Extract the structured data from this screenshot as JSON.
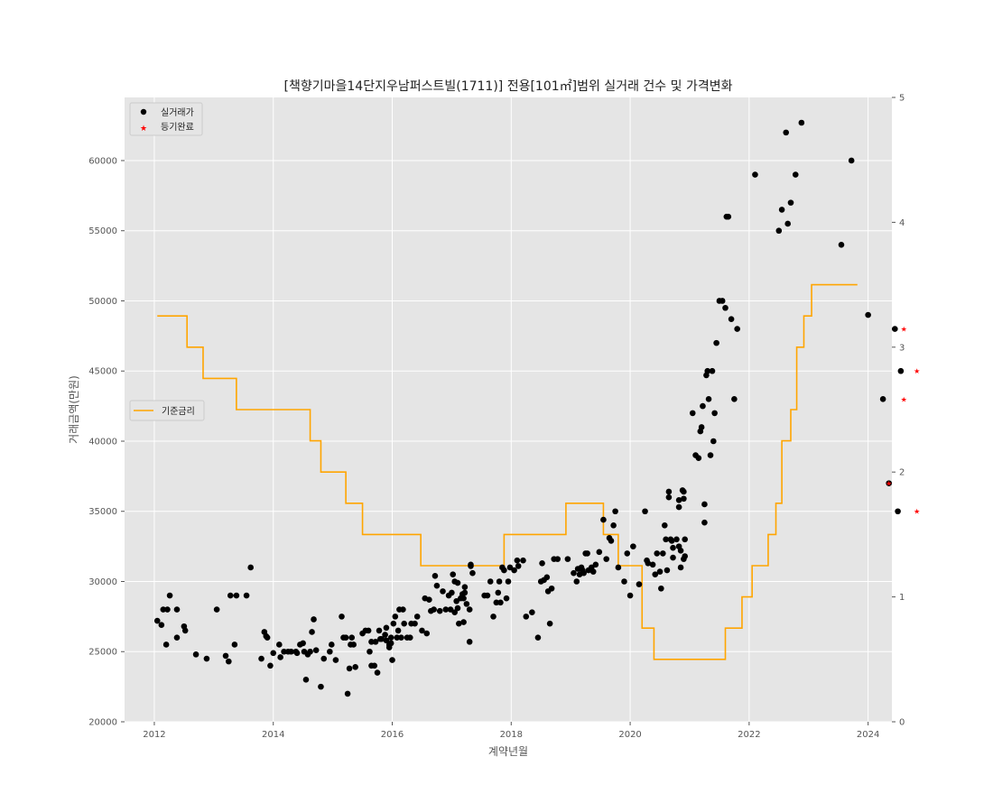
{
  "chart_data": {
    "type": "scatter",
    "title": "[책향기마을14단지우남퍼스트빌(1711)] 전용[101㎡]범위 실거래 건수 및 가격변화",
    "xlabel": "계약년월",
    "ylabel": "거래금액(만원)",
    "xlim": [
      2011.5,
      2024.4
    ],
    "ylim": [
      20000,
      64500
    ],
    "y2lim": [
      0,
      5
    ],
    "x_ticks": [
      2012,
      2014,
      2016,
      2018,
      2020,
      2022,
      2024
    ],
    "y_ticks": [
      20000,
      25000,
      30000,
      35000,
      40000,
      45000,
      50000,
      55000,
      60000
    ],
    "y2_ticks": [
      0,
      1,
      2,
      3,
      4,
      5
    ],
    "grid": true,
    "background": "#e5e5e5",
    "legend_top": {
      "position": "top-left",
      "entries": [
        {
          "label": "실거래가",
          "color": "#000000",
          "marker": "circle"
        },
        {
          "label": "등기완료",
          "color": "#ff0000",
          "marker": "star"
        }
      ]
    },
    "legend_mid": {
      "position": "center-left",
      "entries": [
        {
          "label": "기준금리",
          "color": "#ffa500",
          "marker": "line"
        }
      ]
    },
    "series": [
      {
        "name": "실거래가",
        "color": "#000000",
        "points": [
          [
            2012.05,
            27200
          ],
          [
            2012.12,
            26900
          ],
          [
            2012.15,
            28000
          ],
          [
            2012.2,
            25500
          ],
          [
            2012.22,
            28000
          ],
          [
            2012.26,
            29000
          ],
          [
            2012.38,
            26000
          ],
          [
            2012.38,
            28000
          ],
          [
            2012.5,
            26800
          ],
          [
            2012.52,
            26500
          ],
          [
            2012.7,
            24800
          ],
          [
            2012.88,
            24500
          ],
          [
            2013.05,
            28000
          ],
          [
            2013.2,
            24700
          ],
          [
            2013.25,
            24300
          ],
          [
            2013.28,
            29000
          ],
          [
            2013.35,
            25500
          ],
          [
            2013.38,
            29000
          ],
          [
            2013.55,
            29000
          ],
          [
            2013.62,
            31000
          ],
          [
            2013.8,
            24500
          ],
          [
            2013.85,
            26400
          ],
          [
            2013.88,
            26100
          ],
          [
            2013.9,
            26000
          ],
          [
            2013.95,
            24000
          ],
          [
            2014.0,
            24900
          ],
          [
            2014.1,
            25500
          ],
          [
            2014.12,
            24600
          ],
          [
            2014.18,
            25000
          ],
          [
            2014.25,
            25000
          ],
          [
            2014.3,
            25000
          ],
          [
            2014.38,
            25000
          ],
          [
            2014.4,
            24900
          ],
          [
            2014.45,
            25500
          ],
          [
            2014.5,
            25600
          ],
          [
            2014.52,
            25000
          ],
          [
            2014.55,
            23000
          ],
          [
            2014.58,
            24800
          ],
          [
            2014.62,
            25000
          ],
          [
            2014.65,
            26400
          ],
          [
            2014.68,
            27300
          ],
          [
            2014.72,
            25100
          ],
          [
            2014.8,
            22500
          ],
          [
            2014.85,
            24500
          ],
          [
            2014.95,
            25000
          ],
          [
            2014.98,
            25500
          ],
          [
            2015.05,
            24400
          ],
          [
            2015.15,
            27500
          ],
          [
            2015.18,
            26000
          ],
          [
            2015.22,
            26000
          ],
          [
            2015.25,
            22000
          ],
          [
            2015.28,
            23800
          ],
          [
            2015.3,
            25500
          ],
          [
            2015.32,
            26000
          ],
          [
            2015.35,
            25500
          ],
          [
            2015.38,
            23900
          ],
          [
            2015.5,
            26300
          ],
          [
            2015.55,
            26500
          ],
          [
            2015.6,
            26500
          ],
          [
            2015.62,
            25000
          ],
          [
            2015.65,
            25700
          ],
          [
            2015.65,
            24000
          ],
          [
            2015.7,
            24000
          ],
          [
            2015.72,
            25700
          ],
          [
            2015.75,
            23500
          ],
          [
            2015.78,
            26500
          ],
          [
            2015.8,
            25900
          ],
          [
            2015.82,
            25900
          ],
          [
            2015.88,
            26200
          ],
          [
            2015.9,
            26700
          ],
          [
            2015.9,
            25800
          ],
          [
            2015.95,
            25500
          ],
          [
            2015.95,
            25300
          ],
          [
            2015.98,
            26000
          ],
          [
            2015.98,
            25600
          ],
          [
            2016.0,
            24400
          ],
          [
            2016.02,
            27000
          ],
          [
            2016.05,
            27500
          ],
          [
            2016.08,
            26000
          ],
          [
            2016.1,
            26500
          ],
          [
            2016.12,
            28000
          ],
          [
            2016.15,
            26000
          ],
          [
            2016.18,
            28000
          ],
          [
            2016.2,
            27000
          ],
          [
            2016.25,
            26000
          ],
          [
            2016.3,
            26000
          ],
          [
            2016.32,
            27000
          ],
          [
            2016.38,
            27000
          ],
          [
            2016.42,
            27500
          ],
          [
            2016.5,
            26500
          ],
          [
            2016.55,
            28800
          ],
          [
            2016.58,
            26300
          ],
          [
            2016.62,
            28700
          ],
          [
            2016.65,
            27900
          ],
          [
            2016.7,
            28000
          ],
          [
            2016.72,
            30400
          ],
          [
            2016.75,
            29700
          ],
          [
            2016.8,
            27900
          ],
          [
            2016.85,
            29300
          ],
          [
            2016.9,
            28000
          ],
          [
            2016.95,
            29000
          ],
          [
            2016.98,
            28000
          ],
          [
            2017.0,
            29200
          ],
          [
            2017.02,
            30500
          ],
          [
            2017.05,
            27800
          ],
          [
            2017.05,
            30000
          ],
          [
            2017.08,
            28600
          ],
          [
            2017.1,
            29900
          ],
          [
            2017.1,
            28100
          ],
          [
            2017.12,
            27000
          ],
          [
            2017.15,
            28800
          ],
          [
            2017.18,
            29100
          ],
          [
            2017.2,
            28800
          ],
          [
            2017.2,
            27100
          ],
          [
            2017.22,
            29600
          ],
          [
            2017.22,
            29200
          ],
          [
            2017.25,
            28400
          ],
          [
            2017.3,
            28000
          ],
          [
            2017.3,
            25700
          ],
          [
            2017.32,
            31100
          ],
          [
            2017.32,
            31200
          ],
          [
            2017.35,
            30600
          ],
          [
            2017.55,
            29000
          ],
          [
            2017.6,
            29000
          ],
          [
            2017.65,
            30000
          ],
          [
            2017.7,
            27500
          ],
          [
            2017.75,
            28500
          ],
          [
            2017.78,
            29200
          ],
          [
            2017.8,
            30000
          ],
          [
            2017.82,
            28500
          ],
          [
            2017.85,
            31000
          ],
          [
            2017.88,
            30800
          ],
          [
            2017.92,
            28800
          ],
          [
            2017.95,
            30000
          ],
          [
            2017.98,
            31000
          ],
          [
            2018.05,
            30800
          ],
          [
            2018.1,
            31500
          ],
          [
            2018.12,
            31100
          ],
          [
            2018.2,
            31500
          ],
          [
            2018.25,
            27500
          ],
          [
            2018.35,
            27800
          ],
          [
            2018.45,
            26000
          ],
          [
            2018.5,
            30000
          ],
          [
            2018.52,
            31300
          ],
          [
            2018.55,
            30100
          ],
          [
            2018.6,
            30300
          ],
          [
            2018.62,
            29300
          ],
          [
            2018.65,
            27000
          ],
          [
            2018.68,
            29500
          ],
          [
            2018.72,
            31600
          ],
          [
            2018.78,
            31600
          ],
          [
            2018.95,
            31600
          ],
          [
            2019.05,
            30600
          ],
          [
            2019.1,
            30000
          ],
          [
            2019.12,
            30900
          ],
          [
            2019.15,
            30500
          ],
          [
            2019.18,
            31000
          ],
          [
            2019.2,
            30800
          ],
          [
            2019.22,
            30600
          ],
          [
            2019.25,
            32000
          ],
          [
            2019.28,
            32000
          ],
          [
            2019.3,
            30800
          ],
          [
            2019.35,
            31000
          ],
          [
            2019.38,
            30700
          ],
          [
            2019.42,
            31200
          ],
          [
            2019.48,
            32100
          ],
          [
            2019.55,
            34400
          ],
          [
            2019.6,
            31600
          ],
          [
            2019.65,
            33100
          ],
          [
            2019.68,
            32900
          ],
          [
            2019.72,
            34000
          ],
          [
            2019.75,
            35000
          ],
          [
            2019.8,
            31000
          ],
          [
            2019.9,
            30000
          ],
          [
            2019.95,
            32000
          ],
          [
            2020.0,
            29000
          ],
          [
            2020.05,
            32500
          ],
          [
            2020.15,
            29800
          ],
          [
            2020.25,
            35000
          ],
          [
            2020.28,
            31500
          ],
          [
            2020.3,
            31300
          ],
          [
            2020.38,
            31200
          ],
          [
            2020.42,
            30500
          ],
          [
            2020.45,
            32000
          ],
          [
            2020.5,
            30700
          ],
          [
            2020.52,
            29500
          ],
          [
            2020.55,
            32000
          ],
          [
            2020.58,
            34000
          ],
          [
            2020.6,
            33000
          ],
          [
            2020.62,
            30800
          ],
          [
            2020.65,
            36400
          ],
          [
            2020.65,
            36000
          ],
          [
            2020.68,
            33000
          ],
          [
            2020.7,
            32900
          ],
          [
            2020.72,
            31700
          ],
          [
            2020.72,
            32400
          ],
          [
            2020.78,
            33000
          ],
          [
            2020.82,
            35800
          ],
          [
            2020.82,
            35300
          ],
          [
            2020.82,
            32500
          ],
          [
            2020.85,
            32200
          ],
          [
            2020.85,
            31000
          ],
          [
            2020.88,
            36500
          ],
          [
            2020.9,
            31600
          ],
          [
            2020.9,
            35900
          ],
          [
            2020.9,
            36400
          ],
          [
            2020.92,
            31800
          ],
          [
            2020.92,
            33000
          ],
          [
            2021.05,
            42000
          ],
          [
            2021.1,
            39000
          ],
          [
            2021.15,
            38800
          ],
          [
            2021.18,
            40700
          ],
          [
            2021.2,
            41000
          ],
          [
            2021.22,
            42500
          ],
          [
            2021.25,
            35500
          ],
          [
            2021.25,
            34200
          ],
          [
            2021.28,
            44700
          ],
          [
            2021.3,
            45000
          ],
          [
            2021.32,
            43000
          ],
          [
            2021.35,
            39000
          ],
          [
            2021.38,
            45000
          ],
          [
            2021.4,
            40000
          ],
          [
            2021.42,
            42000
          ],
          [
            2021.45,
            47000
          ],
          [
            2021.5,
            50000
          ],
          [
            2021.55,
            50000
          ],
          [
            2021.6,
            49500
          ],
          [
            2021.62,
            56000
          ],
          [
            2021.65,
            56000
          ],
          [
            2021.7,
            48700
          ],
          [
            2021.75,
            43000
          ],
          [
            2021.8,
            48000
          ],
          [
            2022.1,
            59000
          ],
          [
            2022.5,
            55000
          ],
          [
            2022.55,
            56500
          ],
          [
            2022.62,
            62000
          ],
          [
            2022.65,
            55500
          ],
          [
            2022.7,
            57000
          ],
          [
            2022.78,
            59000
          ],
          [
            2022.88,
            62700
          ],
          [
            2023.55,
            54000
          ],
          [
            2023.72,
            60000
          ],
          [
            2024.0,
            49000
          ],
          [
            2024.25,
            43000
          ],
          [
            2024.35,
            37000
          ],
          [
            2024.45,
            48000
          ],
          [
            2024.5,
            35000
          ],
          [
            2024.55,
            45000
          ]
        ]
      },
      {
        "name": "등기완료",
        "color": "#ff0000",
        "points": [
          [
            2024.35,
            37000
          ],
          [
            2024.6,
            48000
          ],
          [
            2024.6,
            43000
          ],
          [
            2024.82,
            45000
          ],
          [
            2024.82,
            35000
          ]
        ]
      },
      {
        "name": "기준금리",
        "color": "#ffa500",
        "axis": "right",
        "steps": [
          [
            2012.05,
            3.25
          ],
          [
            2012.55,
            3.0
          ],
          [
            2012.82,
            2.75
          ],
          [
            2013.38,
            2.5
          ],
          [
            2014.62,
            2.25
          ],
          [
            2014.8,
            2.0
          ],
          [
            2015.22,
            1.75
          ],
          [
            2015.5,
            1.5
          ],
          [
            2016.48,
            1.25
          ],
          [
            2017.88,
            1.5
          ],
          [
            2018.92,
            1.75
          ],
          [
            2019.55,
            1.5
          ],
          [
            2019.8,
            1.25
          ],
          [
            2020.2,
            0.75
          ],
          [
            2020.4,
            0.5
          ],
          [
            2021.6,
            0.75
          ],
          [
            2021.88,
            1.0
          ],
          [
            2022.05,
            1.25
          ],
          [
            2022.32,
            1.5
          ],
          [
            2022.45,
            1.75
          ],
          [
            2022.55,
            2.25
          ],
          [
            2022.7,
            2.5
          ],
          [
            2022.8,
            3.0
          ],
          [
            2022.92,
            3.25
          ],
          [
            2023.05,
            3.5
          ],
          [
            2023.82,
            3.5
          ]
        ]
      }
    ]
  }
}
